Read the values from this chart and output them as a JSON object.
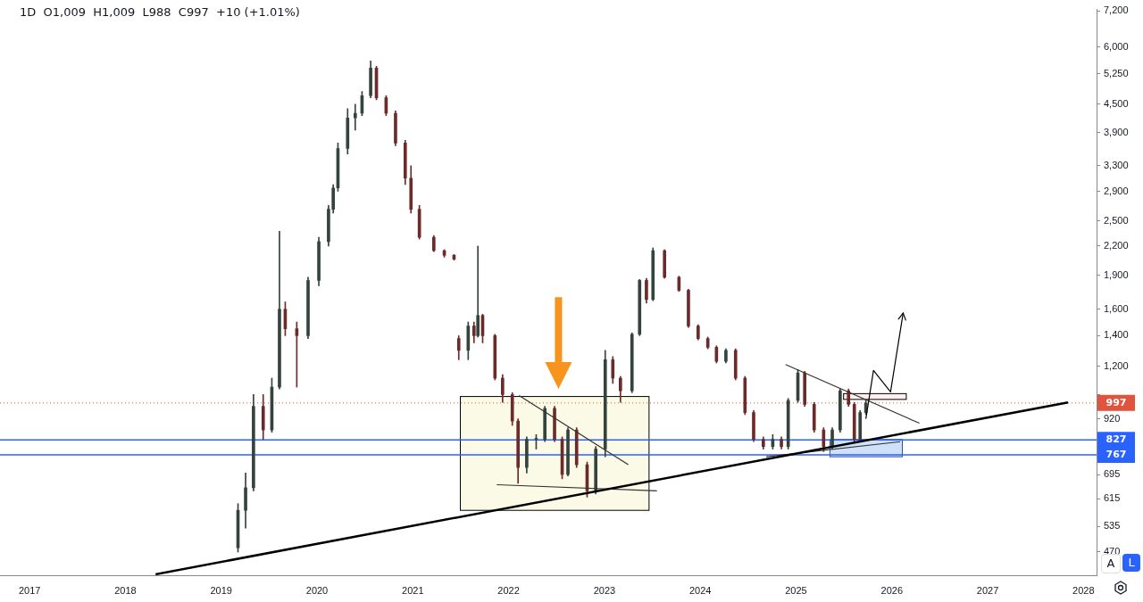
{
  "chart_data": {
    "type": "candlestick",
    "title": "1D  O1,009  H1,009  L988  C997  +10 (+1.01%)",
    "colors": [
      "#34433c",
      "#34433c",
      "#34433c",
      "#6b2b2b",
      "#34433c",
      "#34433c",
      "#6b2b2b",
      "#6b2b2b",
      "#34433c",
      "#34433c",
      "#34433c",
      "#34433c",
      "#34433c",
      "#34433c",
      "#34433c",
      "#34433c",
      "#34433c",
      "#6b2b2b",
      "#6b2b2b",
      "#6b2b2b",
      "#6b2b2b",
      "#6b2b2b",
      "#6b2b2b",
      "#6b2b2b",
      "#6b2b2b",
      "#6b2b2b",
      "#6b2b2b",
      "#34433c",
      "#6b2b2b",
      "#34433c",
      "#6b2b2b",
      "#6b2b2b",
      "#6b2b2b",
      "#6b2b2b",
      "#6b2b2b",
      "#34433c",
      "#34433c",
      "#34433c",
      "#6b2b2b",
      "#6b2b2b",
      "#34433c",
      "#6b2b2b",
      "#6b2b2b",
      "#34433c",
      "#34433c",
      "#6b2b2b",
      "#6b2b2b",
      "#34433c",
      "#34433c",
      "#6b2b2b",
      "#34433c",
      "#6b2b2b",
      "#6b2b2b",
      "#6b2b2b",
      "#6b2b2b",
      "#6b2b2b",
      "#6b2b2b",
      "#34433c",
      "#6b2b2b",
      "#6b2b2b",
      "#6b2b2b",
      "#6b2b2b",
      "#34433c",
      "#6b2b2b",
      "#34433c",
      "#34433c",
      "#6b2b2b",
      "#6b2b2b",
      "#6b2b2b",
      "#34433c",
      "#34433c",
      "#6b2b2b",
      "#6b2b2b",
      "#34433c",
      "#34433c"
    ],
    "grid": false,
    "legend": false,
    "x": [
      "2019-03-06",
      "2019-04-04",
      "2019-05-04",
      "2019-06-10",
      "2019-07-13",
      "2019-08-11",
      "2019-09-02",
      "2019-10-16",
      "2019-11-28",
      "2020-01-08",
      "2020-02-14",
      "2020-03-03",
      "2020-03-21",
      "2020-04-27",
      "2020-05-26",
      "2020-06-21",
      "2020-07-24",
      "2020-08-15",
      "2020-09-21",
      "2020-10-27",
      "2020-12-03",
      "2020-12-25",
      "2021-01-26",
      "2021-03-22",
      "2021-05-01",
      "2021-06-07",
      "2021-06-25",
      "2021-07-31",
      "2021-08-22",
      "2021-09-06",
      "2021-09-24",
      "2021-11-10",
      "2021-12-09",
      "2022-01-15",
      "2022-02-06",
      "2022-03-11",
      "2022-04-16",
      "2022-05-19",
      "2022-06-25",
      "2022-07-24",
      "2022-08-15",
      "2022-09-17",
      "2022-10-27",
      "2022-11-29",
      "2023-01-04",
      "2023-02-02",
      "2023-03-03",
      "2023-04-16",
      "2023-05-15",
      "2023-06-10",
      "2023-07-05",
      "2023-08-18",
      "2023-10-12",
      "2023-11-17",
      "2023-12-24",
      "2024-01-30",
      "2024-03-03",
      "2024-04-08",
      "2024-05-15",
      "2024-06-20",
      "2024-07-23",
      "2024-08-29",
      "2024-10-04",
      "2024-11-06",
      "2024-12-02",
      "2025-01-08",
      "2025-02-03",
      "2025-03-11",
      "2025-04-16",
      "2025-05-19",
      "2025-06-18",
      "2025-07-20",
      "2025-08-11",
      "2025-09-02",
      "2025-09-24"
    ],
    "ohlc": [
      [
        480,
        600,
        470,
        580
      ],
      [
        580,
        700,
        530,
        650
      ],
      [
        650,
        1040,
        640,
        980
      ],
      [
        980,
        1040,
        830,
        870
      ],
      [
        870,
        1130,
        860,
        1080
      ],
      [
        1080,
        2370,
        1070,
        1600
      ],
      [
        1600,
        1660,
        1400,
        1450
      ],
      [
        1450,
        1500,
        1080,
        1400
      ],
      [
        1400,
        1880,
        1380,
        1850
      ],
      [
        1850,
        2300,
        1800,
        2250
      ],
      [
        2250,
        2700,
        2200,
        2650
      ],
      [
        2650,
        3000,
        2600,
        2950
      ],
      [
        2950,
        3700,
        2900,
        3600
      ],
      [
        3600,
        4400,
        3500,
        4200
      ],
      [
        4200,
        4500,
        3950,
        4300
      ],
      [
        4300,
        4800,
        4250,
        4700
      ],
      [
        4700,
        5600,
        4650,
        5400
      ],
      [
        5400,
        5450,
        4600,
        4650
      ],
      [
        4650,
        4700,
        4250,
        4300
      ],
      [
        4300,
        4350,
        3650,
        3700
      ],
      [
        3700,
        3750,
        3000,
        3100
      ],
      [
        3100,
        3300,
        2600,
        2650
      ],
      [
        2650,
        2700,
        2280,
        2300
      ],
      [
        2300,
        2320,
        2140,
        2150
      ],
      [
        2150,
        2160,
        2080,
        2100
      ],
      [
        2100,
        2110,
        2050,
        2060
      ],
      [
        1380,
        1400,
        1240,
        1300
      ],
      [
        1300,
        1500,
        1240,
        1470
      ],
      [
        1470,
        1500,
        1350,
        1400
      ],
      [
        1400,
        2200,
        1390,
        1550
      ],
      [
        1550,
        1560,
        1350,
        1400
      ],
      [
        1400,
        1410,
        1120,
        1130
      ],
      [
        1130,
        1150,
        1000,
        1040
      ],
      [
        1040,
        1050,
        890,
        910
      ],
      [
        910,
        920,
        665,
        720
      ],
      [
        720,
        840,
        700,
        830
      ],
      [
        830,
        850,
        790,
        830
      ],
      [
        830,
        980,
        820,
        970
      ],
      [
        970,
        980,
        820,
        830
      ],
      [
        830,
        840,
        680,
        695
      ],
      [
        695,
        880,
        690,
        870
      ],
      [
        870,
        880,
        720,
        730
      ],
      [
        730,
        740,
        620,
        640
      ],
      [
        640,
        800,
        630,
        790
      ],
      [
        790,
        1300,
        760,
        1240
      ],
      [
        1240,
        1260,
        1100,
        1130
      ],
      [
        1130,
        1140,
        1000,
        1060
      ],
      [
        1060,
        1420,
        1050,
        1410
      ],
      [
        1410,
        1860,
        1400,
        1850
      ],
      [
        1850,
        1870,
        1650,
        1680
      ],
      [
        1680,
        2180,
        1670,
        2150
      ],
      [
        2150,
        2160,
        1870,
        1880
      ],
      [
        1880,
        1890,
        1750,
        1760
      ],
      [
        1760,
        1770,
        1460,
        1470
      ],
      [
        1470,
        1480,
        1370,
        1380
      ],
      [
        1380,
        1390,
        1310,
        1320
      ],
      [
        1320,
        1330,
        1220,
        1230
      ],
      [
        1230,
        1310,
        1220,
        1300
      ],
      [
        1300,
        1310,
        1120,
        1130
      ],
      [
        1130,
        1140,
        940,
        950
      ],
      [
        950,
        960,
        820,
        830
      ],
      [
        830,
        840,
        790,
        800
      ],
      [
        800,
        850,
        790,
        830
      ],
      [
        830,
        840,
        790,
        800
      ],
      [
        800,
        1020,
        790,
        1010
      ],
      [
        1010,
        1180,
        1000,
        1160
      ],
      [
        1160,
        1170,
        980,
        990
      ],
      [
        990,
        1000,
        860,
        870
      ],
      [
        870,
        880,
        780,
        800
      ],
      [
        800,
        880,
        790,
        870
      ],
      [
        870,
        1070,
        860,
        1060
      ],
      [
        1060,
        1070,
        980,
        990
      ],
      [
        990,
        1000,
        820,
        830
      ],
      [
        830,
        960,
        820,
        950
      ],
      [
        950,
        1009,
        940,
        997
      ]
    ],
    "series": [
      {
        "type": "line",
        "color": "#000000",
        "x": [
          "2018-04-26",
          "2027-11-03"
        ],
        "values": [
          420,
          1000
        ]
      },
      {
        "type": "line",
        "color": "#333333",
        "x": [
          "2022-02-10",
          "2023-04-02"
        ],
        "values": [
          1035,
          730
        ]
      },
      {
        "type": "line",
        "color": "#333333",
        "x": [
          "2021-11-17",
          "2023-07-20"
        ],
        "values": [
          660,
          640
        ]
      },
      {
        "type": "line",
        "color": "#333333",
        "x": [
          "2024-11-22",
          "2026-04-16"
        ],
        "values": [
          1210,
          900
        ]
      },
      {
        "type": "line",
        "color": "#333333",
        "x": [
          "2024-09-09",
          "2026-02-02"
        ],
        "values": [
          760,
          820
        ]
      }
    ],
    "ref_lines": [
      {
        "axis": "y",
        "value": 997,
        "label": "997",
        "color": "#e0533d",
        "line_style": "dotted"
      },
      {
        "axis": "y",
        "value": 827,
        "label": "827",
        "color": "#2962ff",
        "line_style": "solid"
      },
      {
        "axis": "y",
        "value": 767,
        "label": "767",
        "color": "#2962ff",
        "line_style": "solid"
      }
    ],
    "log": "y",
    "xlim": [
      "2016-09-10",
      "2028-02-20"
    ],
    "xticks": [
      "2017",
      "2018",
      "2019",
      "2020",
      "2021",
      "2022",
      "2023",
      "2024",
      "2025",
      "2026",
      "2027",
      "2028"
    ],
    "ylim": [
      418,
      7260
    ],
    "yticks": [
      470,
      535,
      615,
      695,
      920,
      {
        "value": 1040,
        "label": null
      },
      {
        "value": 1200,
        "label": "1,200"
      },
      {
        "value": 1400,
        "label": "1,400"
      },
      {
        "value": 1600,
        "label": "1,600"
      },
      {
        "value": 1900,
        "label": "1,900"
      },
      {
        "value": 2200,
        "label": "2,200"
      },
      {
        "value": 2500,
        "label": "2,500"
      },
      {
        "value": 2900,
        "label": "2,900"
      },
      {
        "value": 3300,
        "label": "3,300"
      },
      {
        "value": 3900,
        "label": "3,900"
      },
      {
        "value": 4500,
        "label": "4,500"
      },
      {
        "value": 5250,
        "label": "5,250"
      },
      {
        "value": 6000,
        "label": "6,000"
      },
      {
        "value": 7200,
        "label": "7,200"
      }
    ],
    "annotations": [
      "A",
      "L"
    ]
  }
}
